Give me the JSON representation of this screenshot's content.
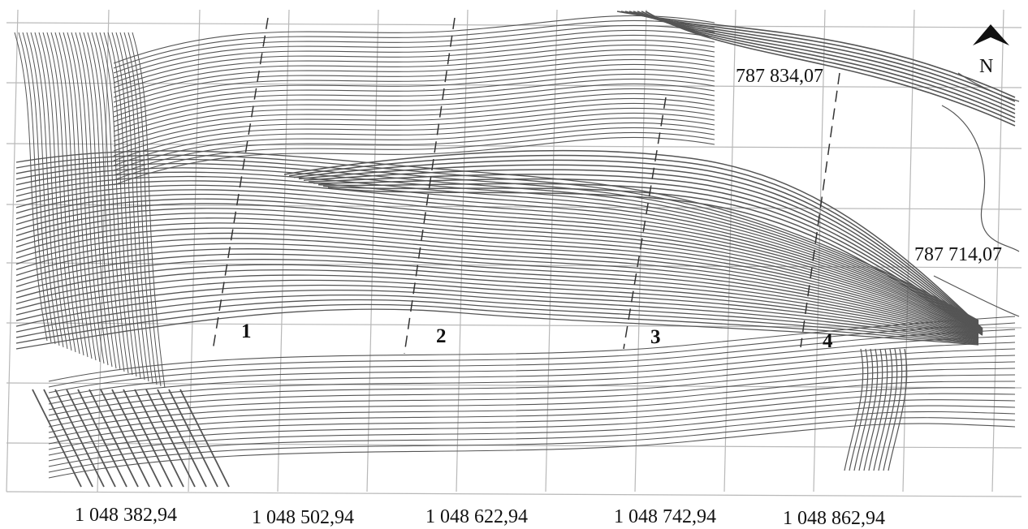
{
  "map": {
    "north_label": "N",
    "northing_labels": [
      "787 834,07",
      "787 714,07"
    ],
    "easting_labels": [
      "1 048 382,94",
      "1 048 502,94",
      "1 048 622,94",
      "1 048 742,94",
      "1 048 862,94"
    ],
    "profile_labels": [
      "1",
      "2",
      "3",
      "4"
    ],
    "colors": {
      "contour": "#555555",
      "grid": "#b8b8b8",
      "profile_line": "#333333",
      "background": "#ffffff"
    }
  }
}
